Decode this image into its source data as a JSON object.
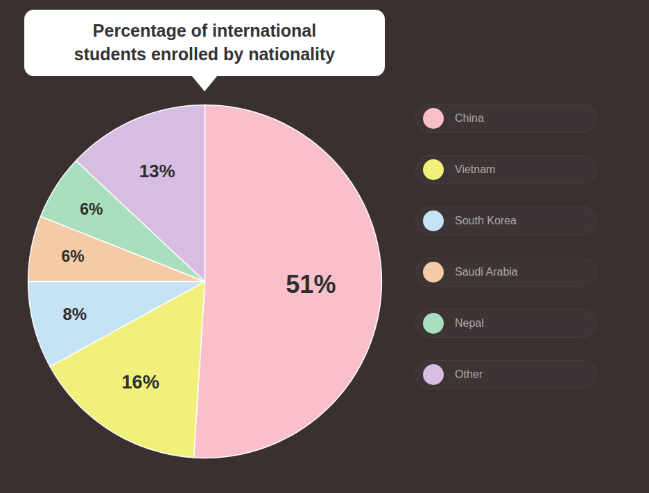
{
  "chart_data": {
    "type": "pie",
    "title": "Percentage of international\nstudents enrolled by nationality",
    "categories": [
      "China",
      "Vietnam",
      "South Korea",
      "Saudi Arabia",
      "Nepal",
      "Other"
    ],
    "values": [
      51,
      16,
      8,
      6,
      6,
      13
    ],
    "value_labels": [
      "51%",
      "16%",
      "8%",
      "6%",
      "6%",
      "13%"
    ],
    "colors": [
      "#f9c0cb",
      "#f0f07a",
      "#c5e3f5",
      "#f5cba7",
      "#a9dfbf",
      "#d7bde2"
    ],
    "data_labels": true,
    "legend": "right"
  }
}
